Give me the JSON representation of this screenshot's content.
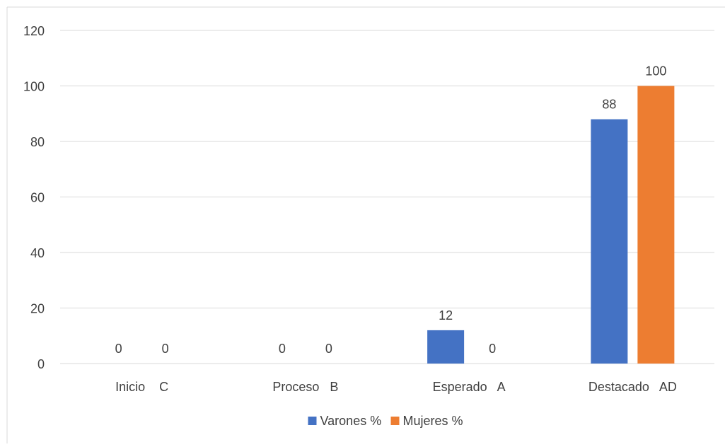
{
  "chart_data": {
    "type": "bar",
    "title": "",
    "xlabel": "",
    "ylabel": "",
    "categories": [
      "Inicio    C",
      "Proceso   B",
      "Esperado   A",
      "Destacado   AD"
    ],
    "series": [
      {
        "name": "Varones %",
        "values": [
          0,
          0,
          12,
          88
        ],
        "color": "#4472C4"
      },
      {
        "name": "Mujeres %",
        "values": [
          0,
          0,
          0,
          100
        ],
        "color": "#ED7D31"
      }
    ],
    "ylim": [
      0,
      120
    ],
    "yticks": [
      0,
      20,
      40,
      60,
      80,
      100,
      120
    ],
    "grid": true,
    "legend_position": "bottom",
    "data_labels": true
  }
}
